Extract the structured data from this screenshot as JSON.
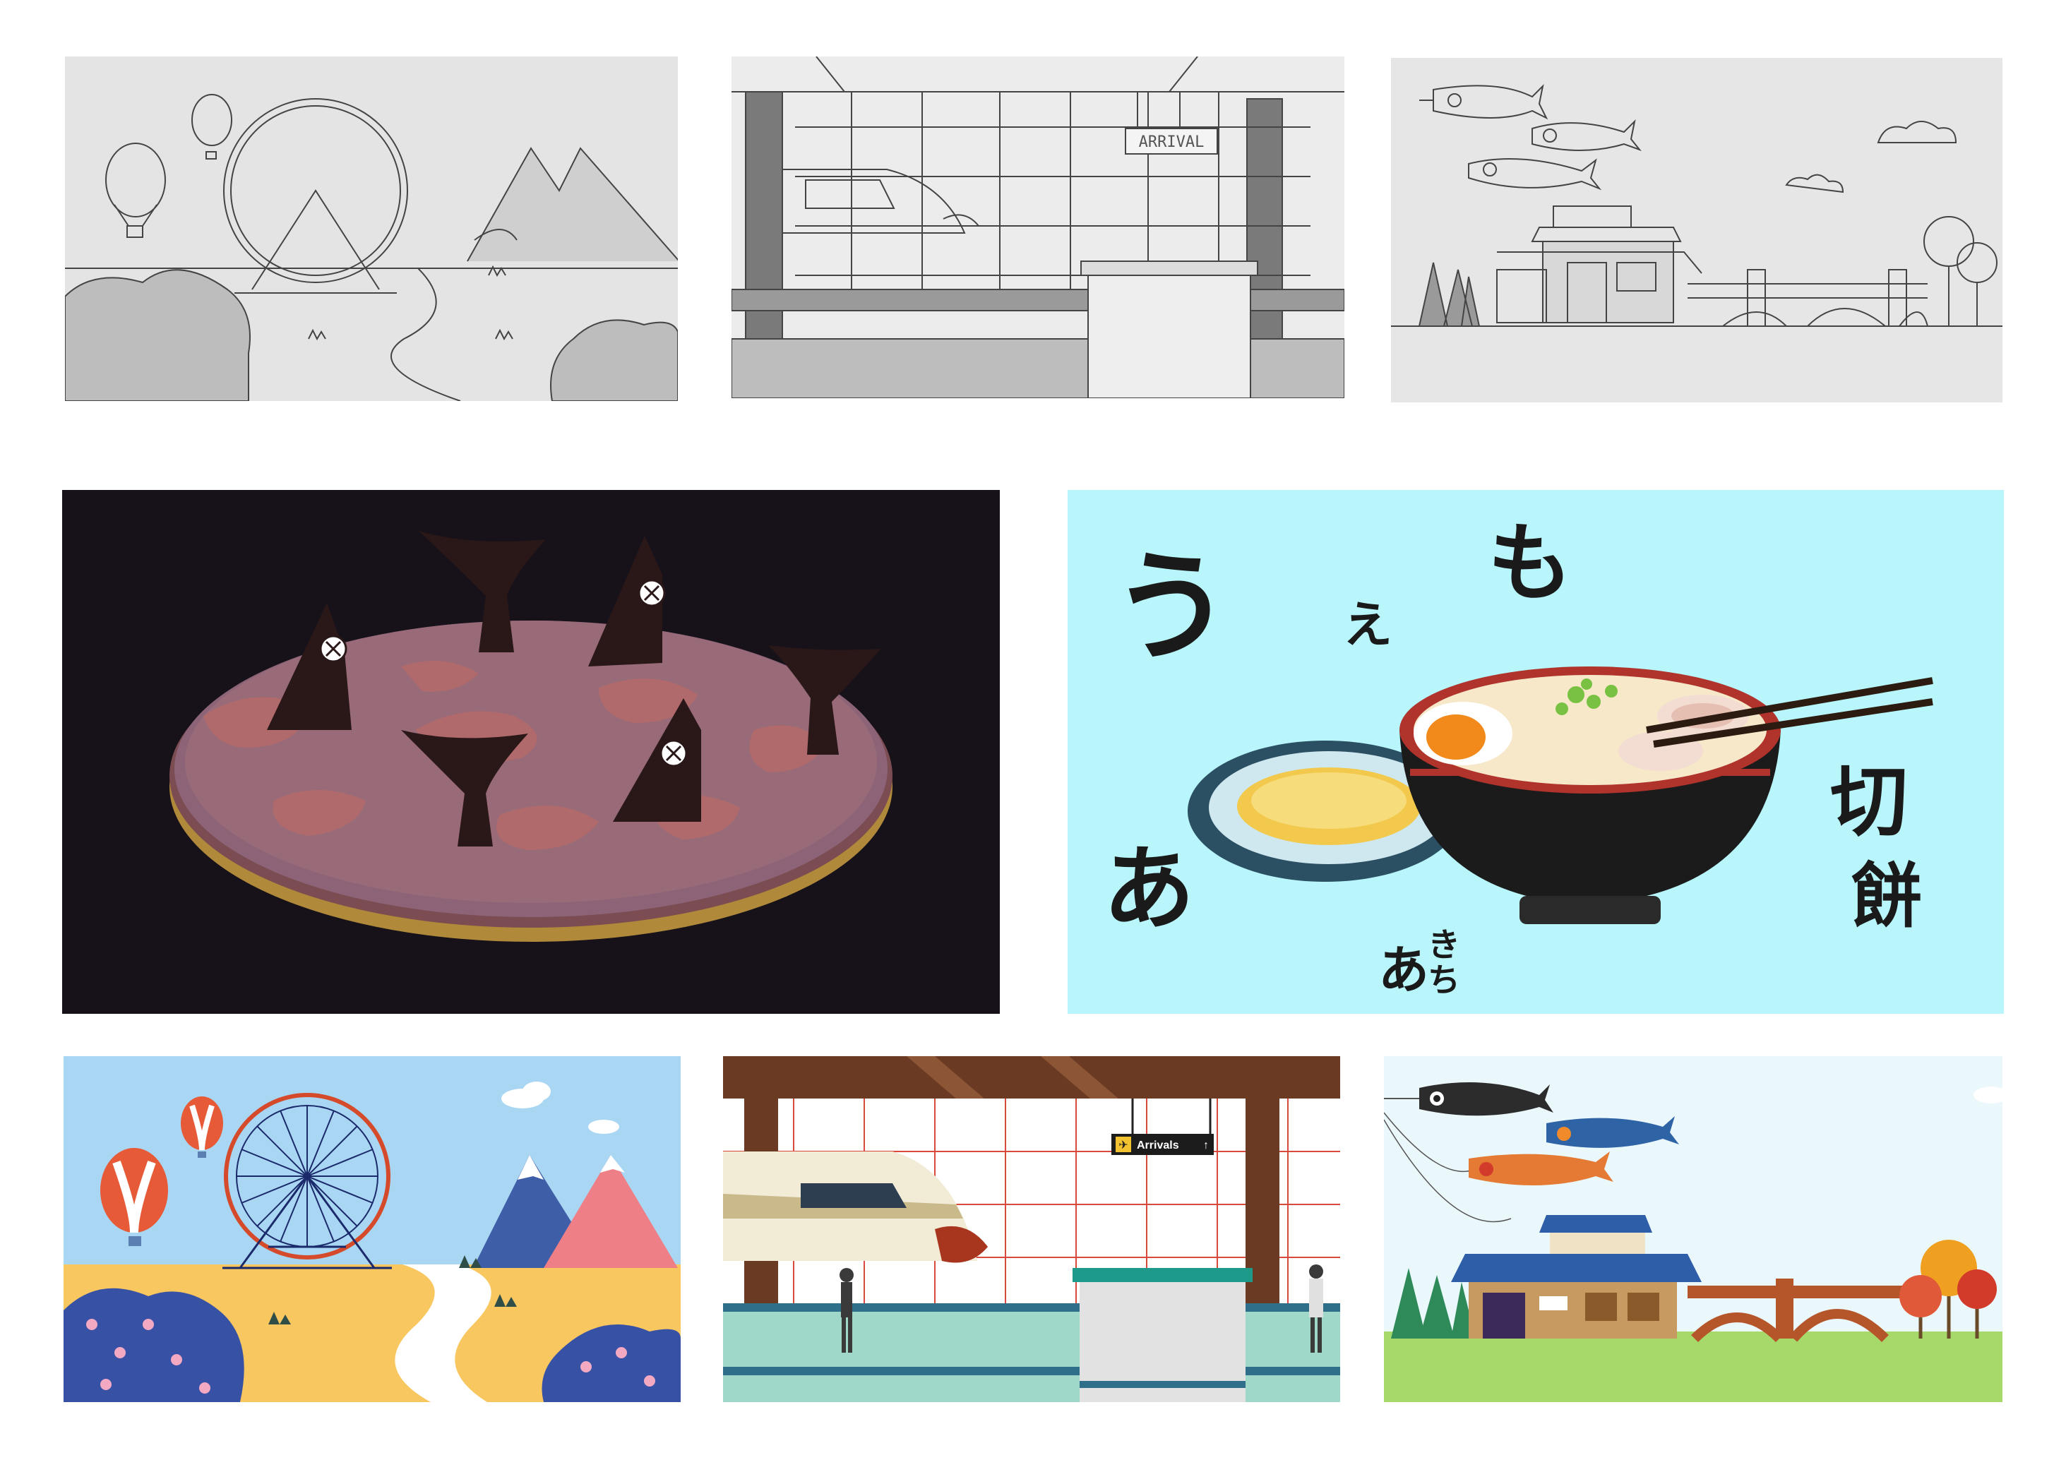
{
  "panels": {
    "sketch_ferris_wheel": {
      "style": "pencil sketch"
    },
    "sketch_station": {
      "style": "pencil sketch",
      "sign_text": "ARRIVAL"
    },
    "sketch_village": {
      "style": "pencil sketch"
    },
    "pizza_illustration": {
      "background": "#17121a"
    },
    "ramen_illustration": {
      "background": "#b8f6fb",
      "glyphs": {
        "u": "う",
        "e": "え",
        "mo": "も",
        "a": "あ",
        "a_mochi_a": "あ",
        "a_mochi_ki": "き",
        "a_mochi_chi": "ち",
        "kiri": "切",
        "mochi_kanji": "餅"
      }
    },
    "color_ferris_wheel": {
      "sky": "#a9d6f2",
      "ground": "#f8c760"
    },
    "color_station": {
      "sign_text": "Arrivals",
      "sign_arrow": "↑"
    },
    "color_village": {
      "sky": "#eaf7fb",
      "grass": "#a6d86a"
    }
  },
  "icons": [
    "hot-air-balloon-icon",
    "ferris-wheel-icon",
    "mountain-icon",
    "train-icon",
    "koinobori-icon",
    "bowl-icon",
    "chopsticks-icon",
    "airplane-icon"
  ]
}
